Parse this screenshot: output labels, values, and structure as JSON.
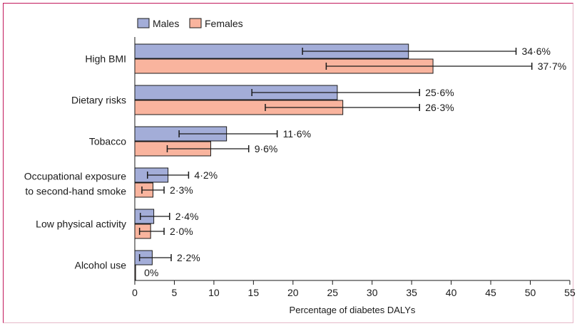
{
  "chart_data": {
    "type": "bar",
    "orientation": "horizontal",
    "categories": [
      [
        "High BMI"
      ],
      [
        "Dietary risks"
      ],
      [
        "Tobacco"
      ],
      [
        "Occupational exposure",
        "to second-hand smoke"
      ],
      [
        "Low physical activity"
      ],
      [
        "Alcohol use"
      ]
    ],
    "series": [
      {
        "name": "Males",
        "color": "#a3add8",
        "values": [
          34.6,
          25.6,
          11.6,
          4.2,
          2.4,
          2.2
        ],
        "lower": [
          21.2,
          14.8,
          5.6,
          1.6,
          0.7,
          0.6
        ],
        "upper": [
          48.2,
          36.0,
          18.0,
          6.8,
          4.4,
          4.6
        ],
        "labels": [
          "34·6%",
          "25·6%",
          "11·6%",
          "4·2%",
          "2·4%",
          "2·2%"
        ]
      },
      {
        "name": "Females",
        "color": "#f9b49e",
        "values": [
          37.7,
          26.3,
          9.6,
          2.3,
          2.0,
          0.1
        ],
        "lower": [
          24.2,
          16.5,
          4.1,
          0.9,
          0.6,
          null
        ],
        "upper": [
          50.2,
          36.0,
          14.4,
          3.7,
          3.7,
          null
        ],
        "labels": [
          "37·7%",
          "26·3%",
          "9·6%",
          "2·3%",
          "2·0%",
          "0%"
        ]
      }
    ],
    "xlabel": "Percentage of diabetes DALYs",
    "xlim": [
      0,
      55
    ],
    "xticks": [
      0,
      5,
      10,
      15,
      20,
      25,
      30,
      35,
      40,
      45,
      50,
      55
    ],
    "legend_position": "top-left",
    "grid": false
  }
}
